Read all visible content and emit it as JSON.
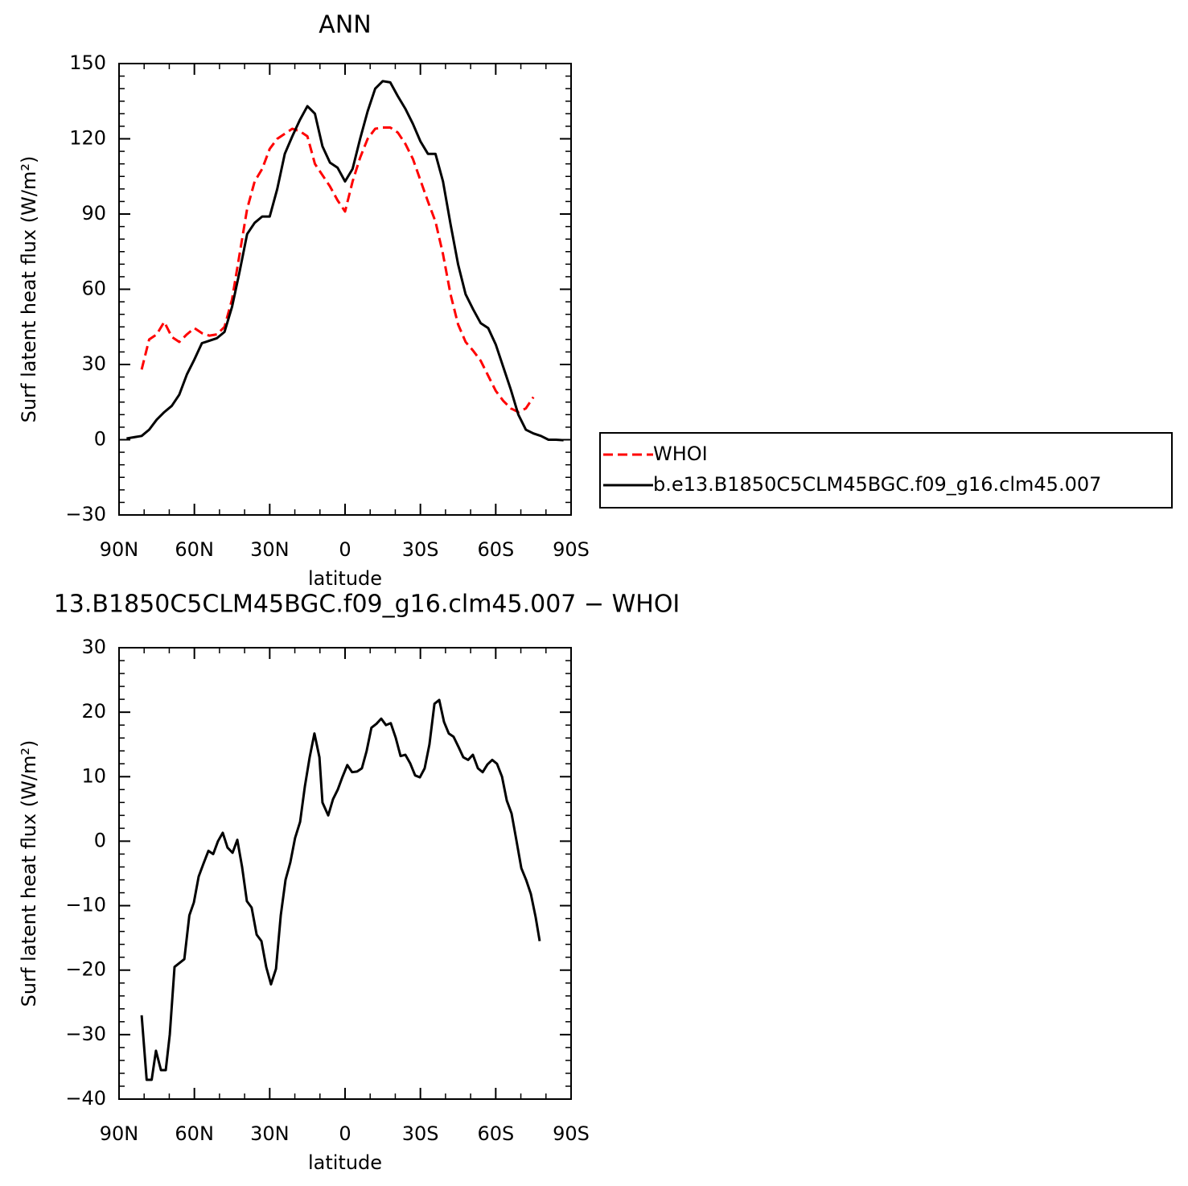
{
  "chart_data": [
    {
      "type": "line",
      "title": "ANN",
      "xlabel": "latitude",
      "ylabel": "Surf latent heat flux (W/m²)",
      "x": [
        87,
        84,
        81,
        78,
        75,
        72,
        69,
        66,
        63,
        60,
        57,
        54,
        51,
        48,
        45,
        42,
        39,
        36,
        33,
        30,
        27,
        24,
        21,
        18,
        15,
        12,
        9,
        6,
        3,
        0,
        -3,
        -6,
        -9,
        -12,
        -15,
        -18,
        -21,
        -24,
        -27,
        -30,
        -33,
        -36,
        -39,
        -42,
        -45,
        -48,
        -51,
        -54,
        -57,
        -60,
        -63,
        -66,
        -69,
        -72,
        -75,
        -78,
        -81,
        -84,
        -87
      ],
      "series": [
        {
          "name": "WHOI",
          "color": "#ff0000",
          "dashed": true,
          "values": [
            null,
            null,
            28,
            40,
            42,
            47,
            41,
            39,
            42,
            44.5,
            42.5,
            41.5,
            42,
            45,
            56,
            74,
            92,
            103,
            108,
            116,
            120,
            122,
            124,
            123,
            121,
            110,
            105.5,
            101,
            95.5,
            91,
            103,
            112.5,
            120,
            124,
            124.5,
            124.5,
            122.5,
            118,
            112,
            103.5,
            95,
            87,
            74,
            58,
            46,
            39,
            35.5,
            31.5,
            25.5,
            19.5,
            15.5,
            12.5,
            11,
            12.5,
            17,
            null,
            null,
            null,
            null
          ]
        },
        {
          "name": "b.e13.B1850C5CLM45BGC.f09_g16.clm45.007",
          "color": "#000000",
          "dashed": false,
          "values": [
            0.5,
            1,
            1.5,
            4,
            8,
            11,
            13.5,
            18,
            26,
            32,
            38.5,
            39.5,
            40.5,
            43,
            53,
            67,
            82,
            86.5,
            89,
            89,
            100,
            114,
            121,
            127.5,
            133,
            130,
            117,
            110.5,
            108.5,
            103,
            108,
            120,
            131,
            140,
            143,
            142.5,
            137,
            132,
            126,
            119,
            114,
            114,
            103,
            86,
            70,
            58,
            52,
            46.5,
            44.5,
            38,
            29,
            20,
            10,
            4,
            2.5,
            1.5,
            0,
            0,
            -0.2
          ]
        }
      ],
      "xlim": [
        90,
        -90
      ],
      "xticks": [
        {
          "value": 90,
          "label": "90N"
        },
        {
          "value": 60,
          "label": "60N"
        },
        {
          "value": 30,
          "label": "30N"
        },
        0,
        {
          "value": -30,
          "label": "30S"
        },
        {
          "value": -60,
          "label": "60S"
        },
        {
          "value": -90,
          "label": "90S"
        }
      ],
      "ylim": [
        -30,
        150
      ],
      "yticks": [
        {
          "value": -30,
          "label": "−30"
        },
        0,
        30,
        60,
        90,
        120,
        150
      ],
      "legend": "right"
    },
    {
      "type": "line",
      "title": "13.B1850C5CLM45BGC.f09_g16.clm45.007 − WHOI",
      "xlabel": "latitude",
      "ylabel": "Surf latent heat flux (W/m²)",
      "x": [
        81,
        79,
        77,
        75.3,
        73.3,
        71.4,
        69.8,
        67.9,
        64,
        62,
        60.2,
        58.3,
        56.4,
        54.4,
        52.5,
        50.6,
        48.7,
        46.8,
        44.8,
        42.9,
        41,
        39.1,
        37.2,
        35.2,
        33.3,
        31.4,
        29.5,
        27.5,
        25.6,
        23.7,
        21.8,
        19.9,
        17.9,
        16,
        14.1,
        12.2,
        10.2,
        9,
        6.7,
        4.8,
        2.9,
        1,
        -0.9,
        -2.8,
        -4.8,
        -6.7,
        -8.6,
        -10.5,
        -12.5,
        -14.4,
        -16.3,
        -18.2,
        -20.2,
        -22.1,
        -24,
        -25.9,
        -27.9,
        -29.8,
        -31.7,
        -33.6,
        -35.6,
        -37.5,
        -39.4,
        -41.3,
        -43.2,
        -45.2,
        -47.1,
        -49,
        -50.9,
        -52.9,
        -54.8,
        -56.7,
        -58.6,
        -60.5,
        -62.5,
        -64.4,
        -66.3,
        -68.2,
        -70.2,
        -72.1,
        -74,
        -75.9,
        -77.5
      ],
      "series": [
        {
          "color": "#000000",
          "dashed": false,
          "values": [
            -27,
            -37,
            -37,
            -32.5,
            -35.5,
            -35.5,
            -30,
            -19.5,
            -18.3,
            -11.5,
            -9.5,
            -5.5,
            -3.5,
            -1.5,
            -2,
            0,
            1.3,
            -1,
            -1.8,
            0.2,
            -4,
            -9.3,
            -10.3,
            -14.5,
            -15.5,
            -19.5,
            -22.2,
            -19.8,
            -11.5,
            -6,
            -3.3,
            0.5,
            3,
            8.5,
            13,
            16.7,
            13,
            6,
            4,
            6.5,
            8,
            10,
            11.8,
            10.7,
            10.8,
            11.3,
            14,
            17.6,
            18.2,
            19,
            18,
            18.3,
            16,
            13.2,
            13.4,
            12.1,
            10.2,
            9.9,
            11.3,
            15,
            21.3,
            21.9,
            18.5,
            16.7,
            16.2,
            14.6,
            13,
            12.6,
            13.4,
            11.3,
            10.7,
            11.9,
            12.6,
            12,
            10,
            6.3,
            4.3,
            0.2,
            -4.2,
            -6,
            -8.2,
            -11.8,
            -15.5
          ]
        }
      ],
      "xlim": [
        90,
        -90
      ],
      "xticks": [
        {
          "value": 90,
          "label": "90N"
        },
        {
          "value": 60,
          "label": "60N"
        },
        {
          "value": 30,
          "label": "30N"
        },
        0,
        {
          "value": -30,
          "label": "30S"
        },
        {
          "value": -60,
          "label": "60S"
        },
        {
          "value": -90,
          "label": "90S"
        }
      ],
      "ylim": [
        -40,
        30
      ],
      "yticks": [
        {
          "value": -40,
          "label": "−40"
        },
        {
          "value": -30,
          "label": "−30"
        },
        {
          "value": -20,
          "label": "−20"
        },
        {
          "value": -10,
          "label": "−10"
        },
        0,
        10,
        20,
        30
      ]
    }
  ]
}
